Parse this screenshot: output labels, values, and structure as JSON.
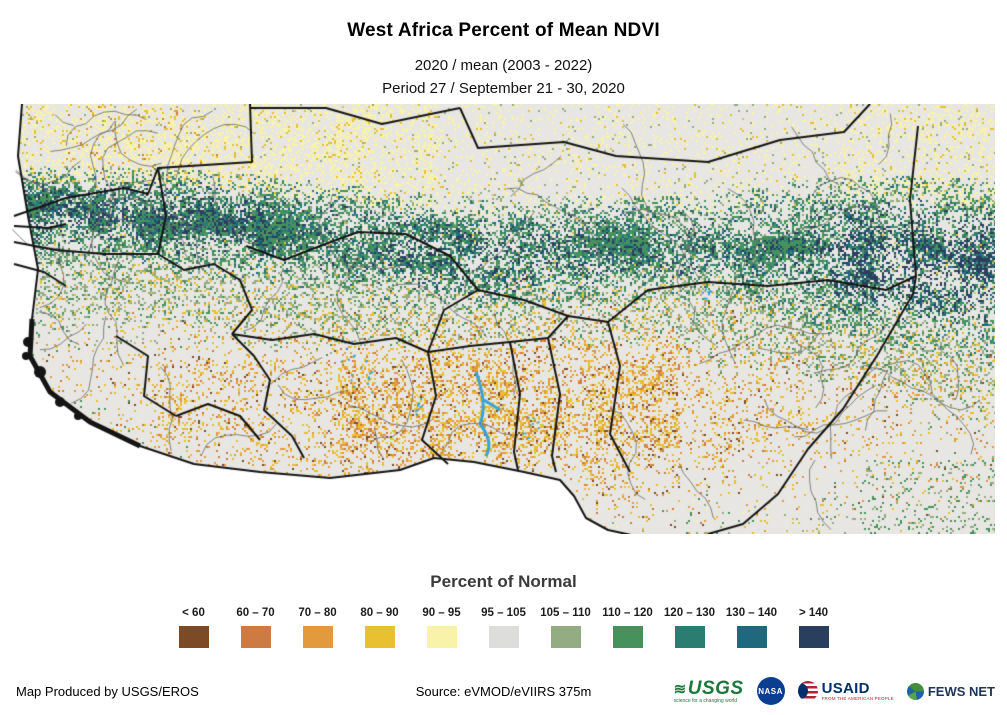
{
  "title": "West Africa Percent of Mean NDVI",
  "subtitle_numerator": "2020 / mean (2003 - 2022)",
  "subtitle_period": "Period 27 / September 21 - 30, 2020",
  "legend": {
    "heading": "Percent of Normal",
    "classes": [
      {
        "key": "brown",
        "label": "< 60",
        "color": "#7d4a26"
      },
      {
        "key": "terracotta",
        "label": "60 – 70",
        "color": "#cd7b43"
      },
      {
        "key": "orange",
        "label": "70 – 80",
        "color": "#e29a3c"
      },
      {
        "key": "gold",
        "label": "80 – 90",
        "color": "#e9c02f"
      },
      {
        "key": "paleYellow",
        "label": "90 – 95",
        "color": "#f8f3a9"
      },
      {
        "key": "gray",
        "label": "95 – 105",
        "color": "#dddddb"
      },
      {
        "key": "sage",
        "label": "105 – 110",
        "color": "#93ac82"
      },
      {
        "key": "green",
        "label": "110 – 120",
        "color": "#47925c"
      },
      {
        "key": "teal",
        "label": "120 – 130",
        "color": "#2b7d72"
      },
      {
        "key": "darkTeal",
        "label": "130 – 140",
        "color": "#20687e"
      },
      {
        "key": "navy",
        "label": "> 140",
        "color": "#2a3f5e"
      }
    ]
  },
  "map": {
    "colors": {
      "ocean": "#ffffff",
      "land_base": "#e7e6e2",
      "water": "#3aa3d4",
      "country_border": "#141414",
      "admin_border": "#8e8e8a"
    }
  },
  "footer": {
    "produced_by": "Map Produced by USGS/EROS",
    "source": "Source: eVMOD/eVIIRS 375m",
    "logos": {
      "usgs": {
        "name": "USGS",
        "tagline": "science for a changing world"
      },
      "nasa": {
        "name": "NASA"
      },
      "usaid": {
        "name": "USAID",
        "tagline": "FROM THE AMERICAN PEOPLE"
      },
      "fewsnet": {
        "name": "FEWS NET"
      }
    }
  }
}
